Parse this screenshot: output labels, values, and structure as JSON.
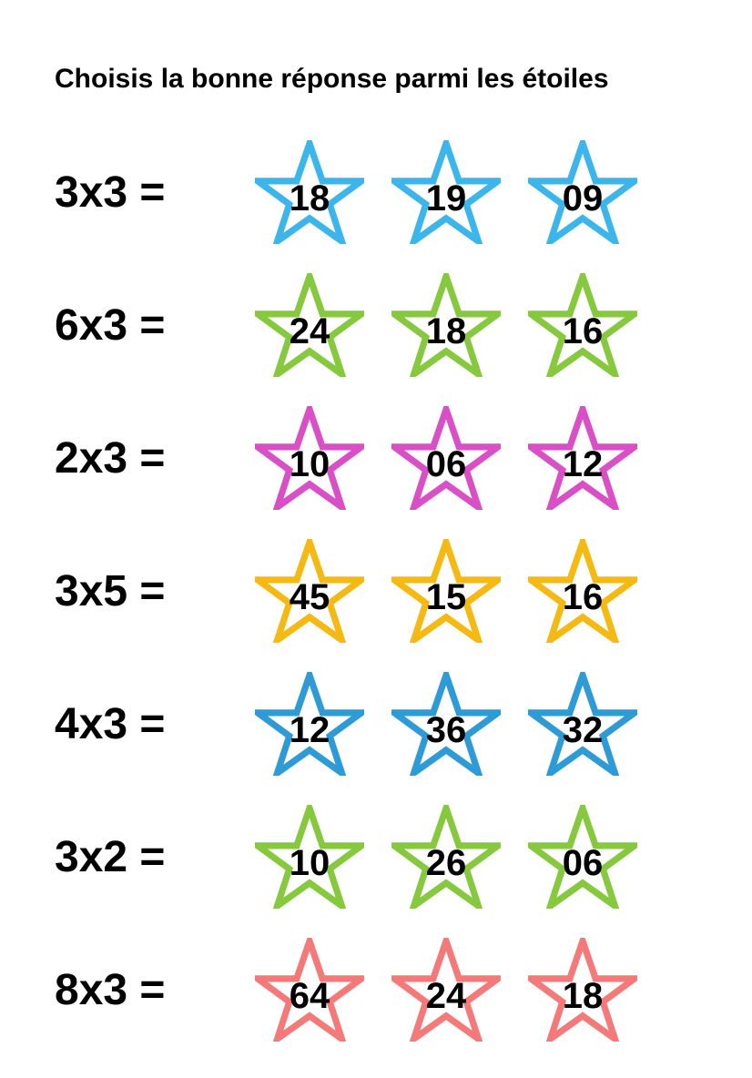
{
  "title": "Choisis la bonne réponse parmi les étoiles",
  "star_stroke_width": 6,
  "question_fontsize": 48,
  "answer_fontsize": 40,
  "title_fontsize": 30,
  "background_color": "#ffffff",
  "text_color": "#000000",
  "rows": [
    {
      "question": "3x3 =",
      "color": "#3cb6ea",
      "answers": [
        "18",
        "19",
        "09"
      ]
    },
    {
      "question": "6x3 =",
      "color": "#86c93e",
      "answers": [
        "24",
        "18",
        "16"
      ]
    },
    {
      "question": "2x3 =",
      "color": "#d84fc6",
      "answers": [
        "10",
        "06",
        "12"
      ]
    },
    {
      "question": "3x5 =",
      "color": "#f5b914",
      "answers": [
        "45",
        "15",
        "16"
      ]
    },
    {
      "question": "4x3 =",
      "color": "#2e9bd6",
      "answers": [
        "12",
        "36",
        "32"
      ]
    },
    {
      "question": "3x2 =",
      "color": "#86c93e",
      "answers": [
        "10",
        "26",
        "06"
      ]
    },
    {
      "question": "8x3 =",
      "color": "#f47a7a",
      "answers": [
        "64",
        "24",
        "18"
      ]
    }
  ]
}
